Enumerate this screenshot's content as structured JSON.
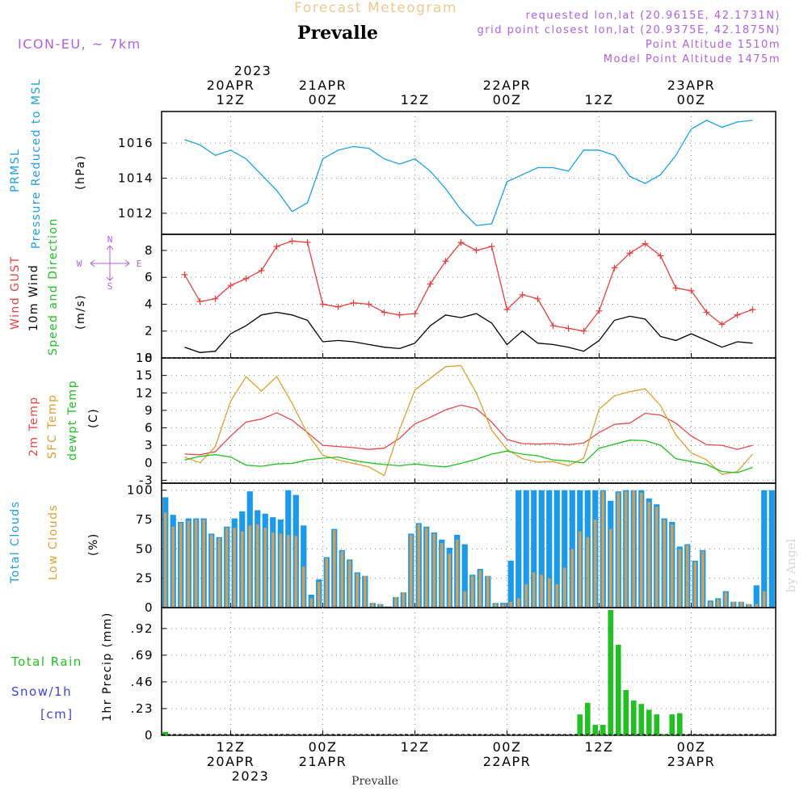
{
  "header": {
    "title": "Forecast Meteogram",
    "station": "Prevalle",
    "model": "ICON-EU, ~ 7km",
    "requested": "requested lon,lat (20.9615E, 42.1731N)",
    "gridpoint": "grid point closest lon,lat (20.9375E, 42.1875N)",
    "point_alt": "Point Altitude 1510m",
    "model_alt": "Model Point Altitude 1475m",
    "footer_station": "Prevalle",
    "watermark": "by Angel"
  },
  "time_axis": {
    "top_year": "2023",
    "top": [
      {
        "day": 0,
        "hour": 12,
        "l1": "20APR",
        "l2": "12Z"
      },
      {
        "day": 1,
        "hour": 0,
        "l1": "21APR",
        "l2": "00Z"
      },
      {
        "day": 1,
        "hour": 12,
        "l1": "",
        "l2": "12Z"
      },
      {
        "day": 2,
        "hour": 0,
        "l1": "22APR",
        "l2": "00Z"
      },
      {
        "day": 2,
        "hour": 12,
        "l1": "",
        "l2": "12Z"
      },
      {
        "day": 3,
        "hour": 0,
        "l1": "23APR",
        "l2": "00Z"
      }
    ],
    "bottom_year": "2023",
    "bottom": [
      {
        "day": 0,
        "hour": 12,
        "l1": "12Z",
        "l2": "20APR"
      },
      {
        "day": 1,
        "hour": 0,
        "l1": "00Z",
        "l2": "21APR"
      },
      {
        "day": 1,
        "hour": 12,
        "l1": "12Z",
        "l2": ""
      },
      {
        "day": 2,
        "hour": 0,
        "l1": "00Z",
        "l2": "22APR"
      },
      {
        "day": 2,
        "hour": 12,
        "l1": "12Z",
        "l2": ""
      },
      {
        "day": 3,
        "hour": 0,
        "l1": "00Z",
        "l2": "23APR"
      }
    ]
  },
  "legends": {
    "pressure": [
      "PRMSL",
      "Pressure Reduced to MSL"
    ],
    "pressure_unit": "(hPa)",
    "wind": [
      "Wind GUST",
      "10m Wind",
      "Speed and Direction"
    ],
    "wind_unit": "(m/s)",
    "compass": {
      "n": "N",
      "s": "S",
      "e": "E",
      "w": "W"
    },
    "temp": [
      "2m Temp",
      "SFC Temp",
      "dewpt Temp"
    ],
    "temp_unit": "(C)",
    "cloud": [
      "Total Clouds",
      "Low Clouds"
    ],
    "cloud_unit": "(%)",
    "precip_left": [
      "Total Rain",
      "Snow/1h",
      "[cm]"
    ],
    "precip_axis": "1hr Precip (mm)"
  },
  "colors": {
    "pressure": "#1aa0e8",
    "gust": "#e84040",
    "wind": "#000000",
    "t2m": "#e84848",
    "tsfc": "#e0a030",
    "dewpt": "#22c022",
    "total_cloud": "#1a9ae8",
    "low_cloud": "#c8a060",
    "rain": "#22c022",
    "label_purple": "#b060e0",
    "label_snow": "#4040e0",
    "title_orange": "#f0c890"
  },
  "chart_data": [
    {
      "type": "line",
      "title": "PRMSL Pressure Reduced to MSL",
      "ylabel": "(hPa)",
      "ylim": [
        1010.8,
        1017.8
      ],
      "yticks": [
        1012,
        1014,
        1016
      ],
      "step_hours": 2,
      "series": [
        {
          "name": "PRMSL",
          "values": [
            1016.2,
            1015.9,
            1015.3,
            1015.6,
            1015.1,
            1014.2,
            1013.3,
            1012.1,
            1012.6,
            1015.1,
            1015.6,
            1015.8,
            1015.7,
            1015.1,
            1014.8,
            1015.1,
            1014.4,
            1013.4,
            1012.2,
            1011.3,
            1011.4,
            1013.8,
            1014.2,
            1014.6,
            1014.6,
            1014.4,
            1015.6,
            1015.6,
            1015.3,
            1014.1,
            1013.7,
            1014.2,
            1015.3,
            1016.8,
            1017.3,
            1016.9,
            1017.2,
            1017.3
          ]
        }
      ]
    },
    {
      "type": "line",
      "title": "Wind GUST / 10m Wind Speed and Direction",
      "ylabel": "(m/s)",
      "ylim": [
        0,
        9.2
      ],
      "yticks": [
        0,
        2,
        4,
        6,
        8
      ],
      "step_hours": 2,
      "series": [
        {
          "name": "Wind GUST",
          "values": [
            6.2,
            4.2,
            4.4,
            5.4,
            5.9,
            6.5,
            8.3,
            8.7,
            8.6,
            4.0,
            3.8,
            4.1,
            4.0,
            3.4,
            3.2,
            3.3,
            5.5,
            7.2,
            8.6,
            8.0,
            8.3,
            3.6,
            4.7,
            4.4,
            2.4,
            2.2,
            2.0,
            3.5,
            6.7,
            7.8,
            8.5,
            7.6,
            5.2,
            5.0,
            3.4,
            2.5,
            3.2,
            3.6
          ]
        },
        {
          "name": "10m Wind",
          "values": [
            0.8,
            0.4,
            0.5,
            1.8,
            2.4,
            3.2,
            3.4,
            3.2,
            2.8,
            1.2,
            1.3,
            1.2,
            1.0,
            0.8,
            0.7,
            1.1,
            2.4,
            3.2,
            3.0,
            3.3,
            2.6,
            1.0,
            2.0,
            1.1,
            1.0,
            0.8,
            0.5,
            1.3,
            2.8,
            3.1,
            2.9,
            1.6,
            1.3,
            1.8,
            1.3,
            0.8,
            1.2,
            1.1
          ]
        }
      ]
    },
    {
      "type": "line",
      "title": "2m Temp / SFC Temp / dewpt Temp",
      "ylabel": "(C)",
      "ylim": [
        -3.5,
        18
      ],
      "yticks": [
        -3,
        0,
        3,
        6,
        9,
        12,
        15,
        18
      ],
      "step_hours": 2,
      "series": [
        {
          "name": "2m Temp",
          "values": [
            1.5,
            1.4,
            1.9,
            4.6,
            7.0,
            7.5,
            8.6,
            7.3,
            5.2,
            3.0,
            2.8,
            2.6,
            2.3,
            2.5,
            4.2,
            6.7,
            7.8,
            9.1,
            9.9,
            9.3,
            7.0,
            4.0,
            3.3,
            3.2,
            3.3,
            3.1,
            3.4,
            5.2,
            6.6,
            6.8,
            8.5,
            8.2,
            6.8,
            4.6,
            3.1,
            3.0,
            2.3,
            3.0
          ]
        },
        {
          "name": "SFC Temp",
          "values": [
            1.0,
            0.0,
            2.8,
            10.6,
            14.8,
            12.3,
            14.8,
            10.2,
            5.0,
            1.3,
            0.5,
            -0.1,
            -0.7,
            -2.2,
            5.7,
            12.5,
            14.5,
            16.5,
            16.7,
            12.0,
            5.6,
            2.3,
            0.7,
            0.1,
            0.2,
            -0.5,
            0.8,
            9.2,
            11.5,
            12.2,
            12.7,
            9.8,
            4.8,
            1.7,
            0.5,
            -2.0,
            -1.5,
            1.5
          ]
        },
        {
          "name": "dewpt Temp",
          "values": [
            0.5,
            1.1,
            1.4,
            1.0,
            -0.4,
            -0.6,
            -0.2,
            -0.1,
            0.5,
            0.8,
            1.0,
            0.4,
            0.0,
            -0.3,
            -0.5,
            -0.2,
            -0.5,
            -0.7,
            -0.1,
            0.6,
            1.5,
            2.0,
            1.5,
            1.2,
            0.5,
            0.3,
            0.0,
            2.5,
            3.2,
            3.9,
            3.8,
            3.0,
            0.7,
            0.2,
            -0.3,
            -1.5,
            -1.7,
            -0.8
          ]
        }
      ]
    },
    {
      "type": "bar",
      "title": "Total Clouds / Low Clouds",
      "ylabel": "(%)",
      "ylim": [
        0,
        106
      ],
      "yticks": [
        0,
        25,
        50,
        75,
        100
      ],
      "step_hours": 1,
      "series": [
        {
          "name": "Total Clouds",
          "values": [
            94,
            79,
            73,
            76,
            76,
            76,
            63,
            60,
            69,
            76,
            82,
            99,
            83,
            80,
            77,
            75,
            100,
            96,
            70,
            11,
            24,
            43,
            67,
            49,
            41,
            30,
            27,
            4,
            3,
            1,
            9,
            13,
            63,
            72,
            69,
            64,
            58,
            51,
            62,
            54,
            28,
            33,
            27,
            4,
            4,
            40,
            100,
            100,
            100,
            100,
            100,
            100,
            100,
            100,
            100,
            100,
            100,
            100,
            91,
            99,
            100,
            100,
            100,
            93,
            88,
            76,
            73,
            52,
            54,
            40,
            49,
            6,
            8,
            14,
            5,
            5,
            3,
            19,
            100,
            100
          ]
        },
        {
          "name": "Low Clouds",
          "values": [
            81,
            69,
            72,
            74,
            75,
            75,
            62,
            59,
            68,
            68,
            65,
            70,
            71,
            68,
            64,
            63,
            62,
            61,
            35,
            8,
            22,
            42,
            66,
            48,
            40,
            29,
            27,
            4,
            3,
            1,
            9,
            13,
            62,
            71,
            68,
            63,
            55,
            46,
            58,
            14,
            27,
            32,
            27,
            4,
            3,
            5,
            8,
            20,
            30,
            28,
            25,
            20,
            34,
            50,
            65,
            60,
            75,
            99,
            67,
            98,
            99,
            100,
            98,
            90,
            86,
            75,
            71,
            50,
            53,
            39,
            48,
            5,
            7,
            13,
            5,
            5,
            3,
            3,
            14,
            0
          ]
        }
      ]
    },
    {
      "type": "bar",
      "title": "1hr Precip (mm)",
      "ylabel": "1hr Precip (mm)",
      "ylim": [
        0,
        1.1
      ],
      "yticks": [
        0,
        0.23,
        0.46,
        0.69,
        0.92
      ],
      "step_hours": 1,
      "series": [
        {
          "name": "Total Rain",
          "values": [
            0.03,
            0,
            0,
            0,
            0,
            0,
            0,
            0,
            0,
            0,
            0,
            0,
            0,
            0,
            0,
            0,
            0,
            0,
            0,
            0,
            0,
            0,
            0,
            0,
            0,
            0,
            0,
            0,
            0,
            0,
            0,
            0,
            0,
            0,
            0,
            0,
            0,
            0,
            0,
            0,
            0,
            0,
            0,
            0,
            0,
            0,
            0,
            0,
            0,
            0,
            0,
            0,
            0,
            0,
            0.18,
            0.28,
            0.09,
            0.09,
            1.08,
            0.78,
            0.39,
            0.3,
            0.27,
            0.22,
            0.18,
            0.01,
            0.18,
            0.19,
            0,
            0,
            0,
            0,
            0,
            0,
            0,
            0,
            0,
            0,
            0,
            0
          ]
        },
        {
          "name": "Snow/1h",
          "values": [
            0,
            0,
            0,
            0,
            0,
            0,
            0,
            0,
            0,
            0,
            0,
            0,
            0,
            0,
            0,
            0,
            0,
            0,
            0,
            0,
            0,
            0,
            0,
            0,
            0,
            0,
            0,
            0,
            0,
            0,
            0,
            0,
            0,
            0,
            0,
            0,
            0,
            0,
            0,
            0,
            0,
            0,
            0,
            0,
            0,
            0,
            0,
            0,
            0,
            0,
            0,
            0,
            0,
            0,
            0,
            0,
            0,
            0,
            0,
            0,
            0,
            0,
            0,
            0,
            0,
            0,
            0,
            0,
            0,
            0,
            0,
            0,
            0,
            0,
            0,
            0,
            0,
            0,
            0,
            0
          ]
        }
      ]
    }
  ]
}
